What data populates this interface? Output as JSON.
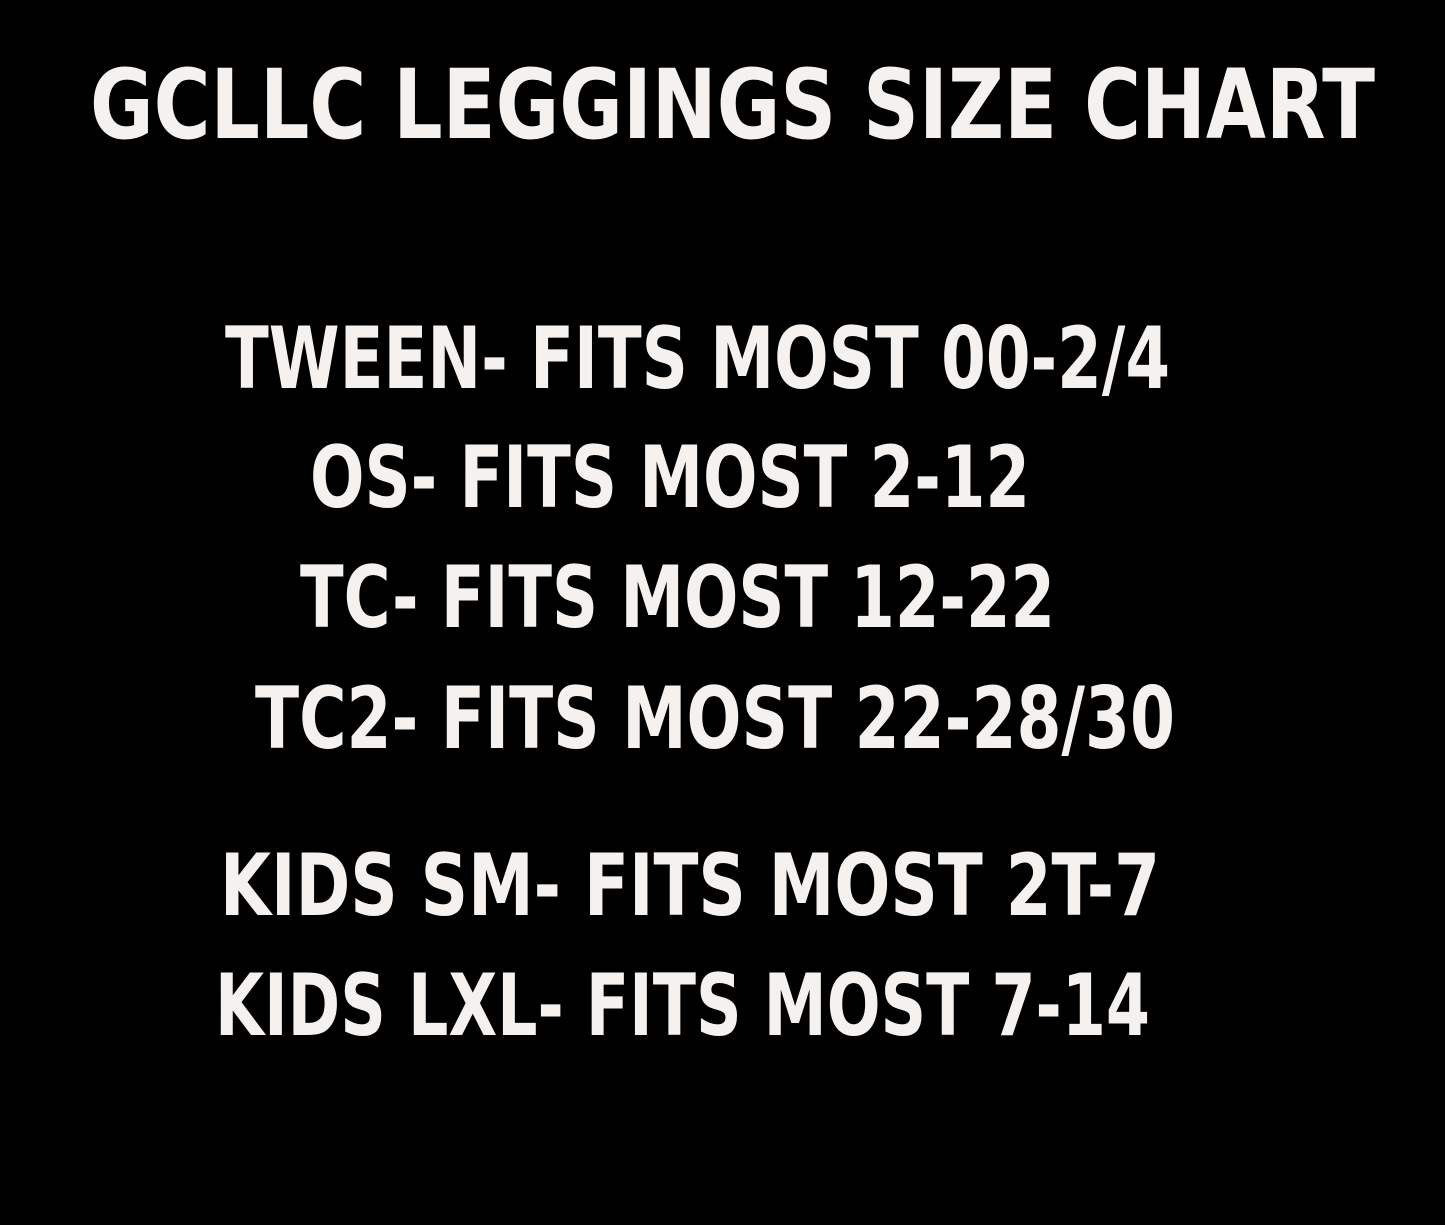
{
  "header": {
    "title": "GCLLC LEGGINGS SIZE CHART"
  },
  "sizes": [
    "TWEEN- FITS MOST 00-2/4",
    "OS- FITS MOST 2-12",
    "TC- FITS MOST 12-22",
    "TC2- FITS MOST 22-28/30"
  ],
  "kids_sizes": [
    "KIDS SM- FITS MOST 2T-7",
    "KIDS LXL- FITS MOST 7-14"
  ]
}
